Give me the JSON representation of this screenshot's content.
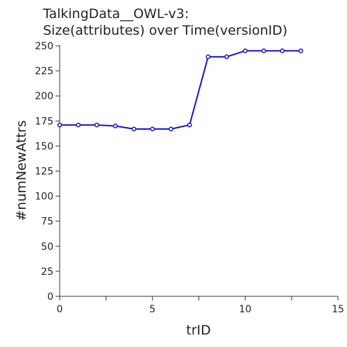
{
  "chart_data": {
    "type": "line",
    "title_lines": [
      "TalkingData__OWL-v3:",
      "Size(attributes) over Time(versionID)"
    ],
    "xlabel": "trID",
    "ylabel": "#numNewAttrs",
    "xlim": [
      0,
      15
    ],
    "ylim": [
      0,
      250
    ],
    "x_ticks": [
      0,
      5,
      10,
      15
    ],
    "x_minor_ticks": [
      2.5,
      7.5,
      12.5
    ],
    "y_ticks": [
      0,
      25,
      50,
      75,
      100,
      125,
      150,
      175,
      200,
      225,
      250
    ],
    "grid": false,
    "series": [
      {
        "color": "#1010e0",
        "x": [
          0,
          1,
          2,
          3,
          4,
          5,
          6,
          7,
          8,
          9,
          10,
          11,
          12,
          13
        ],
        "y": [
          171,
          171,
          171,
          170,
          167,
          167,
          167,
          171,
          239,
          239,
          245,
          245,
          245,
          245
        ]
      }
    ]
  }
}
